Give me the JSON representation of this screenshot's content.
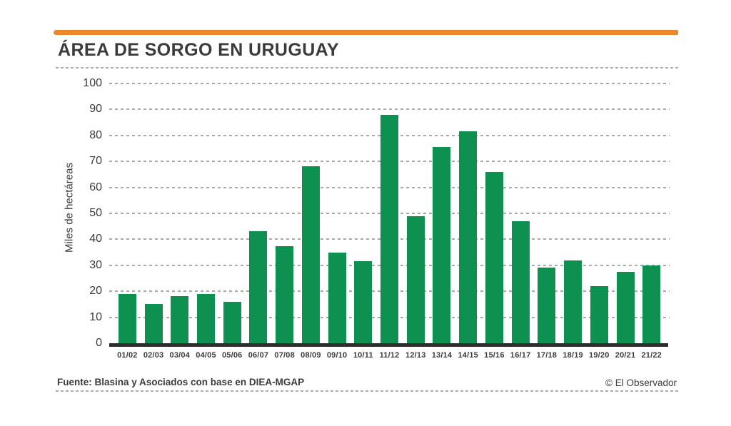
{
  "header": {
    "title": "ÁREA DE SORGO EN URUGUAY"
  },
  "chart_data": {
    "type": "bar",
    "title": "ÁREA DE SORGO EN URUGUAY",
    "xlabel": "",
    "ylabel": "Miles de hectáreas",
    "ylim": [
      0,
      100
    ],
    "yticks": [
      0,
      10,
      20,
      30,
      40,
      50,
      60,
      70,
      80,
      90,
      100
    ],
    "grid": true,
    "legend": "none",
    "bar_color": "#0E9150",
    "categories": [
      "01/02",
      "02/03",
      "03/04",
      "04/05",
      "05/06",
      "06/07",
      "07/08",
      "08/09",
      "09/10",
      "10/11",
      "11/12",
      "12/13",
      "13/14",
      "14/15",
      "15/16",
      "16/17",
      "17/18",
      "18/19",
      "19/20",
      "20/21",
      "21/22"
    ],
    "values": [
      19,
      15,
      18,
      19,
      16,
      43,
      37.5,
      68,
      35,
      31.5,
      88,
      49,
      75.5,
      81.5,
      66,
      47,
      29,
      32,
      22,
      27.5,
      30
    ]
  },
  "footer": {
    "source": "Fuente: Blasina y Asociados con base en DIEA-MGAP",
    "credit": "© El Observador"
  },
  "colors": {
    "accent_orange": "#E8892F",
    "bar_green": "#0E9150",
    "text_dark": "#3B3B3B",
    "grid_gray": "#A8A8A8",
    "baseline_dark": "#2D2D2D"
  }
}
